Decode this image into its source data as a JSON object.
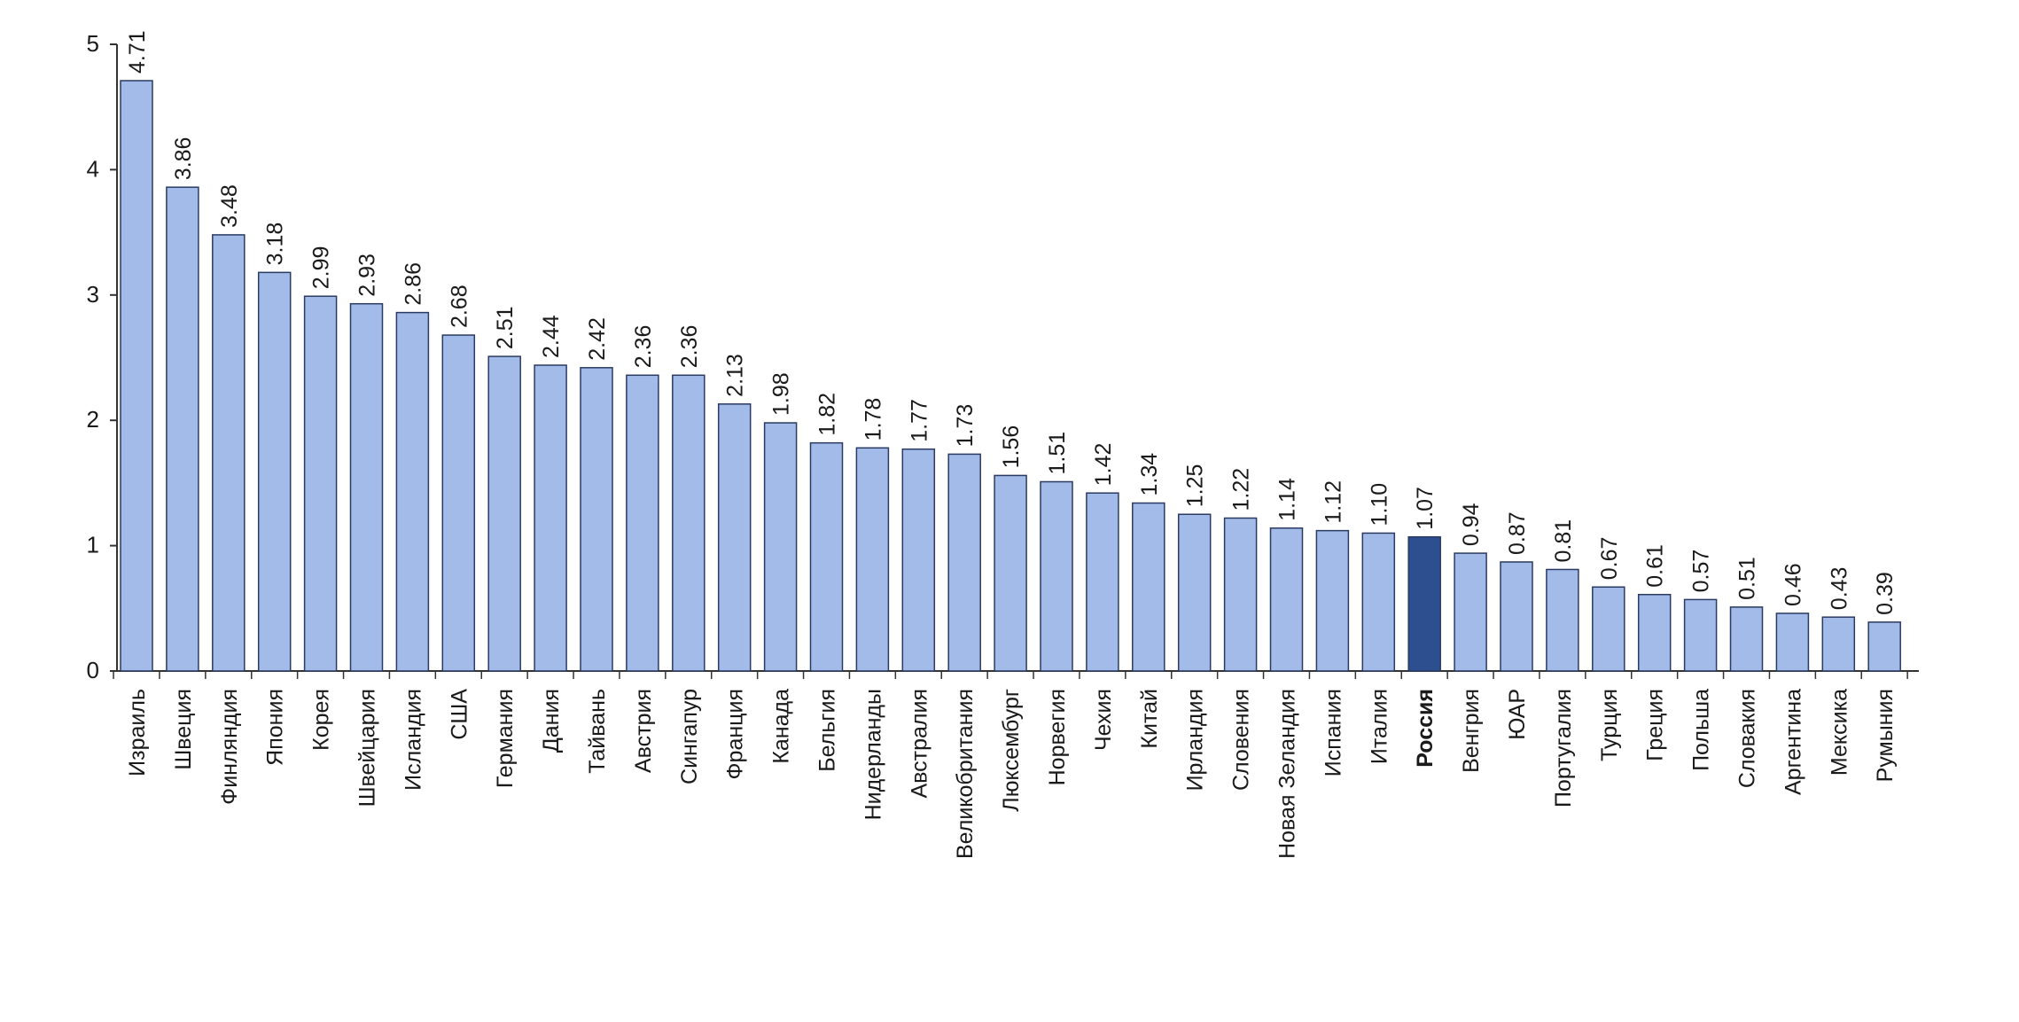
{
  "chart_data": {
    "type": "bar",
    "title": "",
    "xlabel": "",
    "ylabel": "",
    "ylim": [
      0,
      5
    ],
    "yticks": [
      "0",
      "1",
      "2",
      "3",
      "4",
      "5"
    ],
    "grid": false,
    "highlight_category": "Россия",
    "colors": {
      "bar": "#a2bbe8",
      "bar_highlight": "#2e4f8f",
      "bar_edge": "#2a3a62",
      "axis": "#333333",
      "text": "#1a1a1a"
    },
    "categories": [
      "Израиль",
      "Швеция",
      "Финляндия",
      "Япония",
      "Корея",
      "Швейцария",
      "Исландия",
      "США",
      "Германия",
      "Дания",
      "Тайвань",
      "Австрия",
      "Сингапур",
      "Франция",
      "Канада",
      "Бельгия",
      "Нидерланды",
      "Австралия",
      "Великобритания",
      "Люксембург",
      "Норвегия",
      "Чехия",
      "Китай",
      "Ирландия",
      "Словения",
      "Новая Зеландия",
      "Испания",
      "Италия",
      "Россия",
      "Венгрия",
      "ЮАР",
      "Португалия",
      "Турция",
      "Греция",
      "Польша",
      "Словакия",
      "Аргентина",
      "Мексика",
      "Румыния"
    ],
    "values": [
      4.71,
      3.86,
      3.48,
      3.18,
      2.99,
      2.93,
      2.86,
      2.68,
      2.51,
      2.44,
      2.42,
      2.36,
      2.36,
      2.13,
      1.98,
      1.82,
      1.78,
      1.77,
      1.73,
      1.56,
      1.51,
      1.42,
      1.34,
      1.25,
      1.22,
      1.14,
      1.12,
      1.1,
      1.07,
      0.94,
      0.87,
      0.81,
      0.67,
      0.61,
      0.57,
      0.51,
      0.46,
      0.43,
      0.39
    ],
    "data_labels": [
      "4.71",
      "3.86",
      "3.48",
      "3.18",
      "2.99",
      "2.93",
      "2.86",
      "2.68",
      "2.51",
      "2.44",
      "2.42",
      "2.36",
      "2.36",
      "2.13",
      "1.98",
      "1.82",
      "1.78",
      "1.77",
      "1.73",
      "1.56",
      "1.51",
      "1.42",
      "1.34",
      "1.25",
      "1.22",
      "1.14",
      "1.12",
      "1.10",
      "1.07",
      "0.94",
      "0.87",
      "0.81",
      "0.67",
      "0.61",
      "0.57",
      "0.51",
      "0.46",
      "0.43",
      "0.39"
    ]
  }
}
